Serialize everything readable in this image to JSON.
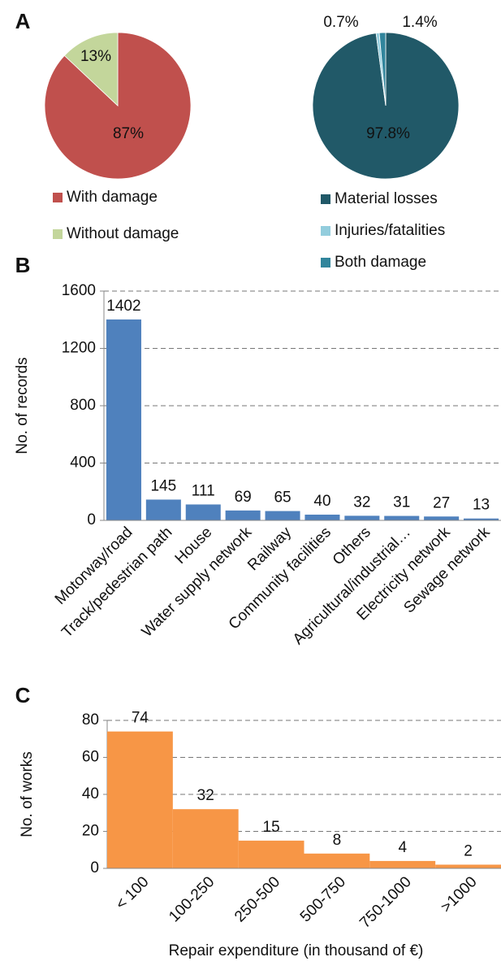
{
  "chart_data": [
    {
      "type": "pie",
      "panel": "A",
      "categories": [
        "With damage",
        "Without damage"
      ],
      "values": [
        87,
        13
      ],
      "value_labels": [
        "87%",
        "13%"
      ],
      "colors": [
        "#c0504d",
        "#c3d69b"
      ]
    },
    {
      "type": "pie",
      "categories": [
        "Material losses",
        "Injuries/fatalities",
        "Both damage"
      ],
      "values": [
        97.8,
        0.7,
        1.4
      ],
      "value_labels": [
        "97.8%",
        "0.7%",
        "1.4%"
      ],
      "colors": [
        "#215968",
        "#93cddd",
        "#31859c"
      ]
    },
    {
      "type": "bar",
      "panel": "B",
      "ylabel": "No. of records",
      "categories": [
        "Motorway/road",
        "Track/pedestrian path",
        "House",
        "Water supply network",
        "Railway",
        "Community facilities",
        "Others",
        "Agricultural/industrial…",
        "Electricity network",
        "Sewage network"
      ],
      "values": [
        1402,
        145,
        111,
        69,
        65,
        40,
        32,
        31,
        27,
        13
      ],
      "color": "#4f81bd",
      "ylim": [
        0,
        1600
      ],
      "yticks": [
        0,
        400,
        800,
        1200,
        1600
      ],
      "grid": true
    },
    {
      "type": "bar",
      "panel": "C",
      "ylabel": "No. of works",
      "xlabel": "Repair expenditure (in thousand of €)",
      "categories": [
        "< 100",
        "100-250",
        "250-500",
        "500-750",
        "750-1000",
        ">1000"
      ],
      "values": [
        74,
        32,
        15,
        8,
        4,
        2
      ],
      "color": "#f79646",
      "ylim": [
        0,
        80
      ],
      "yticks": [
        0,
        20,
        40,
        60,
        80
      ],
      "grid": true
    }
  ]
}
